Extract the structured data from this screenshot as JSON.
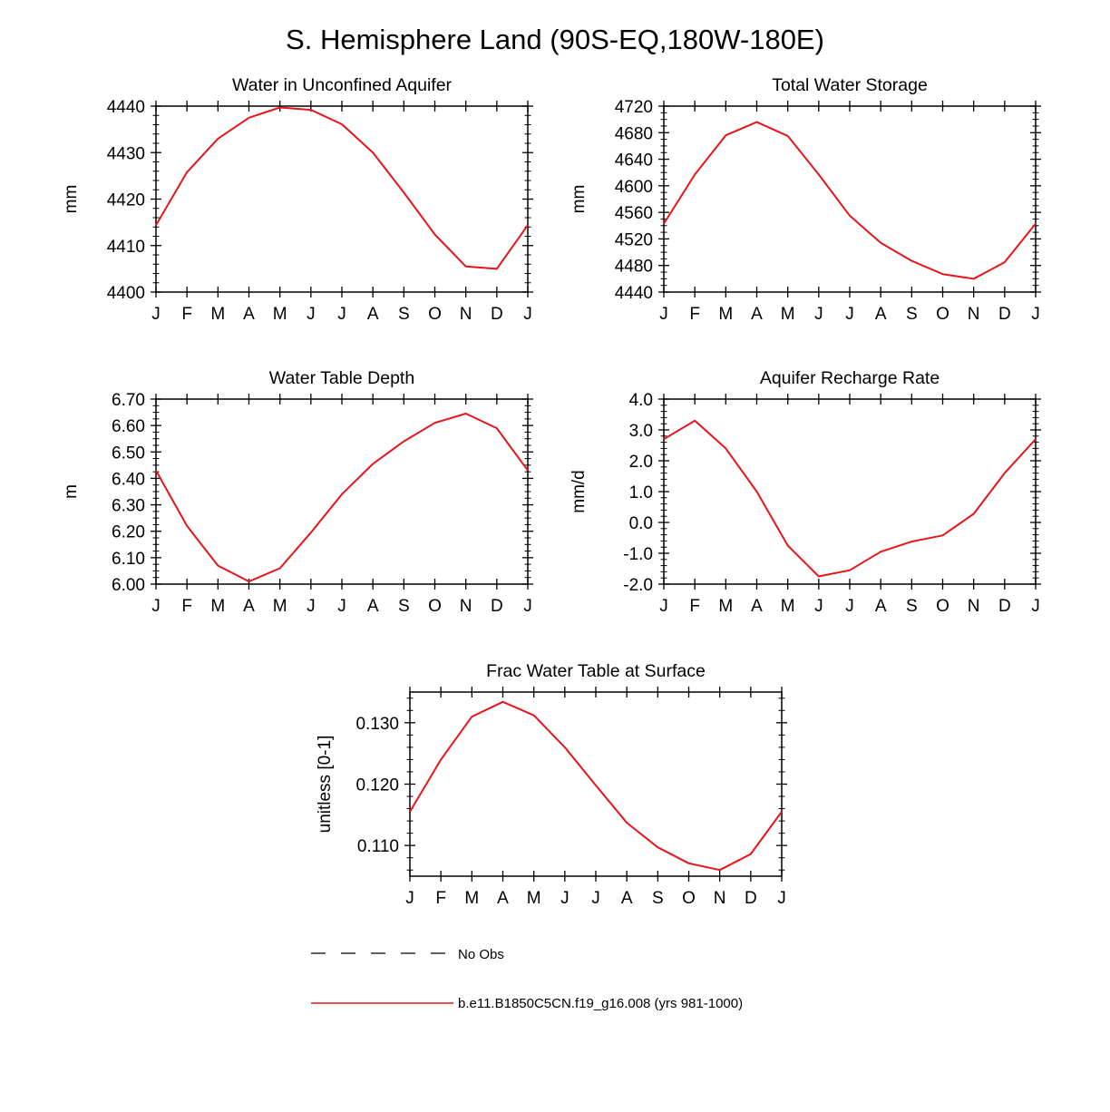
{
  "page": {
    "title": "S. Hemisphere Land (90S-EQ,180W-180E)"
  },
  "colors": {
    "model_line": "#e8141a",
    "obs_line": "#000000",
    "axis": "#000000"
  },
  "legend": {
    "items": [
      {
        "label": "No Obs",
        "style": "dashed",
        "color": "#000000"
      },
      {
        "label": "b.e11.B1850C5CN.f19_g16.008 (yrs 981-1000)",
        "style": "solid",
        "color": "#e8141a"
      }
    ]
  },
  "chart_data": [
    {
      "type": "line",
      "title": "Water in Unconfined Aquifer",
      "xlabel": "",
      "ylabel": "mm",
      "categories": [
        "J",
        "F",
        "M",
        "A",
        "M",
        "J",
        "J",
        "A",
        "S",
        "O",
        "N",
        "D",
        "J"
      ],
      "ylim": [
        4400,
        4440
      ],
      "yticks": [
        4400,
        4410,
        4420,
        4430,
        4440
      ],
      "ytick_labels": [
        "4400",
        "4410",
        "4420",
        "4430",
        "4440"
      ],
      "minor_per_major": 4,
      "series": [
        {
          "name": "b.e11.B1850C5CN.f19_g16.008 (yrs 981-1000)",
          "values": [
            4414.4,
            4425.8,
            4433.0,
            4437.5,
            4439.7,
            4439.2,
            4436.1,
            4430.0,
            4421.4,
            4412.4,
            4405.5,
            4405.0,
            4414.4
          ]
        }
      ]
    },
    {
      "type": "line",
      "title": "Total Water Storage",
      "xlabel": "",
      "ylabel": "mm",
      "categories": [
        "J",
        "F",
        "M",
        "A",
        "M",
        "J",
        "J",
        "A",
        "S",
        "O",
        "N",
        "D",
        "J"
      ],
      "ylim": [
        4440,
        4720
      ],
      "yticks": [
        4440,
        4480,
        4520,
        4560,
        4600,
        4640,
        4680,
        4720
      ],
      "ytick_labels": [
        "4440",
        "4480",
        "4520",
        "4560",
        "4600",
        "4640",
        "4680",
        "4720"
      ],
      "minor_per_major": 3,
      "series": [
        {
          "name": "b.e11.B1850C5CN.f19_g16.008 (yrs 981-1000)",
          "values": [
            4543,
            4617,
            4676,
            4696,
            4675,
            4617,
            4555,
            4514,
            4487,
            4467,
            4460,
            4485,
            4543
          ]
        }
      ]
    },
    {
      "type": "line",
      "title": "Water Table Depth",
      "xlabel": "",
      "ylabel": "m",
      "categories": [
        "J",
        "F",
        "M",
        "A",
        "M",
        "J",
        "J",
        "A",
        "S",
        "O",
        "N",
        "D",
        "J"
      ],
      "ylim": [
        6.0,
        6.7
      ],
      "yticks": [
        6.0,
        6.1,
        6.2,
        6.3,
        6.4,
        6.5,
        6.6,
        6.7
      ],
      "ytick_labels": [
        "6.00",
        "6.10",
        "6.20",
        "6.30",
        "6.40",
        "6.50",
        "6.60",
        "6.70"
      ],
      "minor_per_major": 3,
      "series": [
        {
          "name": "b.e11.B1850C5CN.f19_g16.008 (yrs 981-1000)",
          "values": [
            6.43,
            6.22,
            6.07,
            6.01,
            6.06,
            6.195,
            6.34,
            6.455,
            6.54,
            6.61,
            6.645,
            6.59,
            6.43
          ]
        }
      ]
    },
    {
      "type": "line",
      "title": "Aquifer Recharge Rate",
      "xlabel": "",
      "ylabel": "mm/d",
      "categories": [
        "J",
        "F",
        "M",
        "A",
        "M",
        "J",
        "J",
        "A",
        "S",
        "O",
        "N",
        "D",
        "J"
      ],
      "ylim": [
        -2.0,
        4.0
      ],
      "yticks": [
        -2.0,
        -1.0,
        0.0,
        1.0,
        2.0,
        3.0,
        4.0
      ],
      "ytick_labels": [
        "-2.0",
        "-1.0",
        "0.0",
        "1.0",
        "2.0",
        "3.0",
        "4.0"
      ],
      "minor_per_major": 4,
      "series": [
        {
          "name": "b.e11.B1850C5CN.f19_g16.008 (yrs 981-1000)",
          "values": [
            2.7,
            3.3,
            2.4,
            1.0,
            -0.75,
            -1.75,
            -1.55,
            -0.95,
            -0.62,
            -0.42,
            0.28,
            1.6,
            2.7
          ]
        }
      ]
    },
    {
      "type": "line",
      "title": "Frac Water Table at Surface",
      "xlabel": "",
      "ylabel": "unitless [0-1]",
      "categories": [
        "J",
        "F",
        "M",
        "A",
        "M",
        "J",
        "J",
        "A",
        "S",
        "O",
        "N",
        "D",
        "J"
      ],
      "ylim": [
        0.105,
        0.135
      ],
      "yticks": [
        0.11,
        0.12,
        0.13
      ],
      "ytick_labels": [
        "0.110",
        "0.120",
        "0.130"
      ],
      "minor_per_major": 4,
      "series": [
        {
          "name": "b.e11.B1850C5CN.f19_g16.008 (yrs 981-1000)",
          "values": [
            0.1155,
            0.124,
            0.131,
            0.1334,
            0.1312,
            0.126,
            0.1198,
            0.1137,
            0.1097,
            0.1071,
            0.106,
            0.1086,
            0.1155
          ]
        }
      ]
    }
  ]
}
